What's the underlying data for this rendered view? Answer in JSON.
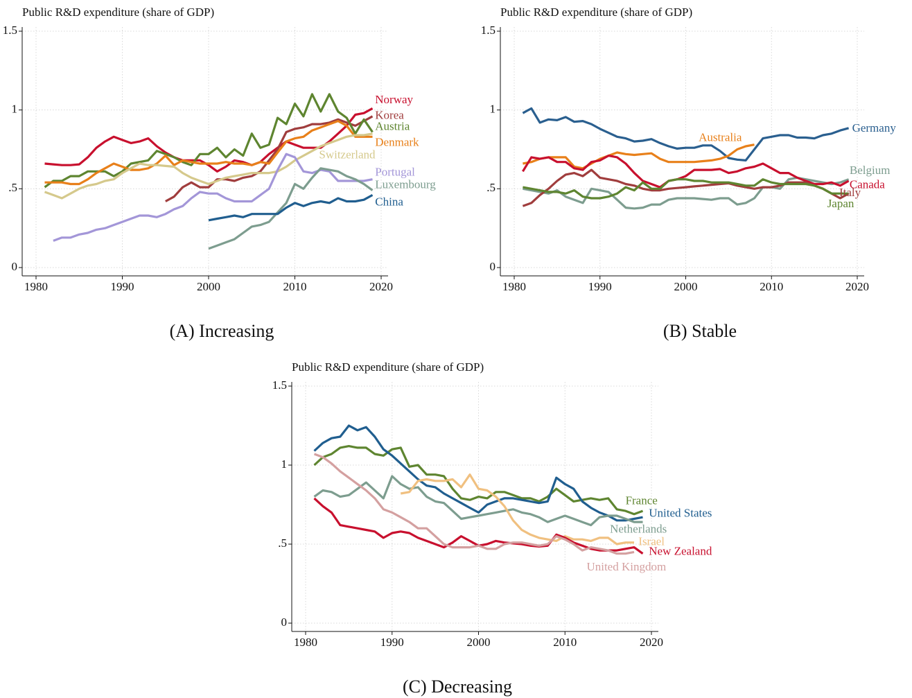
{
  "chart_data": [
    {
      "type": "line",
      "title": "Public R&D expenditure (share of GDP)",
      "caption": "(A) Increasing",
      "x": [
        1981,
        1982,
        1983,
        1984,
        1985,
        1986,
        1987,
        1988,
        1989,
        1990,
        1991,
        1992,
        1993,
        1994,
        1995,
        1996,
        1997,
        1998,
        1999,
        2000,
        2001,
        2002,
        2003,
        2004,
        2005,
        2006,
        2007,
        2008,
        2009,
        2010,
        2011,
        2012,
        2013,
        2014,
        2015,
        2016,
        2017,
        2018,
        2019
      ],
      "xlim": [
        1980,
        2020
      ],
      "xticks": [
        1980,
        1990,
        2000,
        2010,
        2020
      ],
      "ylim": [
        0,
        1.5
      ],
      "yticks": [
        0,
        {
          "value": 0.5,
          "label": ".5"
        },
        1,
        1.5
      ],
      "grid": true,
      "series": [
        {
          "name": "Norway",
          "color": "#c8102e",
          "values": [
            0.66,
            0.655,
            0.65,
            0.65,
            0.655,
            0.7,
            0.76,
            0.8,
            0.83,
            0.81,
            0.79,
            0.8,
            0.82,
            0.77,
            0.73,
            0.7,
            0.68,
            0.68,
            0.68,
            0.65,
            0.61,
            0.64,
            0.68,
            0.67,
            0.65,
            0.67,
            0.72,
            0.76,
            0.8,
            0.78,
            0.76,
            0.76,
            0.76,
            0.8,
            0.85,
            0.9,
            0.97,
            0.98,
            1.01
          ]
        },
        {
          "name": "Korea",
          "color": "#a03d3d",
          "values": [
            null,
            null,
            null,
            null,
            null,
            null,
            null,
            null,
            null,
            null,
            null,
            null,
            null,
            null,
            0.42,
            0.45,
            0.51,
            0.54,
            0.51,
            0.51,
            0.56,
            0.56,
            0.55,
            0.57,
            0.58,
            0.61,
            0.68,
            0.75,
            0.86,
            0.88,
            0.89,
            0.91,
            0.91,
            0.92,
            0.94,
            0.92,
            0.9,
            0.93,
            0.96
          ]
        },
        {
          "name": "Austria",
          "color": "#5e8530",
          "values": [
            0.51,
            0.55,
            0.55,
            0.58,
            0.58,
            0.61,
            0.61,
            0.61,
            0.58,
            0.61,
            0.66,
            0.67,
            0.68,
            0.74,
            0.72,
            0.7,
            0.67,
            0.65,
            0.72,
            0.72,
            0.76,
            0.7,
            0.75,
            0.71,
            0.85,
            0.76,
            0.78,
            0.95,
            0.91,
            1.04,
            0.96,
            1.1,
            0.99,
            1.1,
            0.99,
            0.95,
            0.85,
            0.94,
            0.86
          ]
        },
        {
          "name": "Denmark",
          "color": "#e8801a",
          "values": [
            0.54,
            0.54,
            0.54,
            0.53,
            0.53,
            0.56,
            0.6,
            0.63,
            0.66,
            0.64,
            0.62,
            0.62,
            0.63,
            0.66,
            0.71,
            0.65,
            0.68,
            0.67,
            0.66,
            0.66,
            0.66,
            0.67,
            0.66,
            0.66,
            0.65,
            0.67,
            0.66,
            0.73,
            0.8,
            0.82,
            0.83,
            0.87,
            0.89,
            0.91,
            0.93,
            0.9,
            0.83,
            0.83,
            0.83
          ]
        },
        {
          "name": "Switzerland",
          "color": "#d5c98c",
          "values": [
            0.48,
            0.46,
            0.44,
            0.47,
            0.5,
            0.52,
            0.53,
            0.55,
            0.56,
            0.6,
            0.63,
            0.66,
            0.65,
            0.65,
            0.645,
            0.64,
            0.6,
            0.57,
            0.55,
            0.53,
            0.55,
            0.57,
            0.58,
            0.59,
            0.6,
            0.6,
            0.6,
            0.61,
            0.64,
            0.68,
            0.71,
            0.74,
            0.77,
            0.79,
            0.81,
            0.83,
            0.84,
            0.84,
            0.85
          ]
        },
        {
          "name": "Portugal",
          "color": "#a396d8",
          "values": [
            null,
            0.17,
            0.19,
            0.19,
            0.21,
            0.22,
            0.24,
            0.25,
            0.27,
            0.29,
            0.31,
            0.33,
            0.33,
            0.32,
            0.34,
            0.37,
            0.39,
            0.44,
            0.48,
            0.47,
            0.47,
            0.44,
            0.42,
            0.42,
            0.42,
            0.46,
            0.5,
            0.62,
            0.72,
            0.7,
            0.61,
            0.6,
            0.62,
            0.61,
            0.55,
            0.55,
            0.55,
            0.55,
            0.56
          ]
        },
        {
          "name": "Luxembourg",
          "color": "#7d9d8f",
          "values": [
            null,
            null,
            null,
            null,
            null,
            null,
            null,
            null,
            null,
            null,
            null,
            null,
            null,
            null,
            null,
            null,
            null,
            null,
            null,
            0.12,
            0.14,
            0.16,
            0.18,
            0.22,
            0.26,
            0.27,
            0.29,
            0.35,
            0.41,
            0.53,
            0.5,
            0.57,
            0.63,
            0.62,
            0.61,
            0.58,
            0.56,
            0.53,
            0.49
          ]
        },
        {
          "name": "China",
          "color": "#205e8f",
          "values": [
            null,
            null,
            null,
            null,
            null,
            null,
            null,
            null,
            null,
            null,
            null,
            null,
            null,
            null,
            null,
            null,
            null,
            null,
            null,
            0.3,
            0.31,
            0.32,
            0.33,
            0.32,
            0.34,
            0.34,
            0.34,
            0.34,
            0.38,
            0.41,
            0.39,
            0.41,
            0.42,
            0.41,
            0.44,
            0.42,
            0.42,
            0.43,
            0.46
          ]
        }
      ]
    },
    {
      "type": "line",
      "title": "Public R&D expenditure (share of GDP)",
      "caption": "(B) Stable",
      "x": [
        1981,
        1982,
        1983,
        1984,
        1985,
        1986,
        1987,
        1988,
        1989,
        1990,
        1991,
        1992,
        1993,
        1994,
        1995,
        1996,
        1997,
        1998,
        1999,
        2000,
        2001,
        2002,
        2003,
        2004,
        2005,
        2006,
        2007,
        2008,
        2009,
        2010,
        2011,
        2012,
        2013,
        2014,
        2015,
        2016,
        2017,
        2018,
        2019
      ],
      "xlim": [
        1980,
        2020
      ],
      "xticks": [
        1980,
        1990,
        2000,
        2010,
        2020
      ],
      "ylim": [
        0,
        1.5
      ],
      "yticks": [
        0,
        {
          "value": 0.5,
          "label": ".5"
        },
        1,
        1.5
      ],
      "grid": true,
      "series": [
        {
          "name": "Germany",
          "color": "#2a5f8f",
          "values": [
            0.98,
            1.01,
            0.92,
            0.94,
            0.935,
            0.955,
            0.925,
            0.93,
            0.91,
            0.88,
            0.855,
            0.83,
            0.82,
            0.8,
            0.805,
            0.815,
            0.79,
            0.77,
            0.755,
            0.76,
            0.76,
            0.775,
            0.775,
            0.74,
            0.695,
            0.685,
            0.68,
            0.75,
            0.82,
            0.83,
            0.84,
            0.84,
            0.825,
            0.825,
            0.82,
            0.84,
            0.85,
            0.87,
            0.885
          ]
        },
        {
          "name": "Australia",
          "color": "#e8801a",
          "values": [
            0.66,
            0.67,
            0.69,
            0.7,
            0.7,
            0.7,
            0.64,
            0.63,
            0.66,
            0.69,
            0.71,
            0.73,
            0.72,
            0.715,
            0.72,
            0.725,
            0.69,
            0.67,
            0.67,
            0.67,
            0.67,
            0.675,
            0.68,
            0.69,
            0.71,
            0.75,
            0.77,
            0.78,
            null,
            null,
            null,
            null,
            null,
            null,
            null,
            null,
            null,
            null,
            null
          ]
        },
        {
          "name": "Belgium",
          "color": "#7d9d8f",
          "values": [
            0.5,
            0.49,
            0.48,
            0.47,
            0.49,
            0.45,
            0.43,
            0.41,
            0.5,
            0.49,
            0.48,
            0.43,
            0.38,
            0.375,
            0.38,
            0.4,
            0.4,
            0.43,
            0.44,
            0.44,
            0.44,
            0.435,
            0.43,
            0.44,
            0.44,
            0.4,
            0.41,
            0.44,
            0.51,
            0.51,
            0.5,
            0.56,
            0.57,
            0.56,
            0.55,
            0.54,
            0.53,
            0.54,
            0.56
          ]
        },
        {
          "name": "Canada",
          "color": "#c8102e",
          "values": [
            0.61,
            0.7,
            0.69,
            0.7,
            0.67,
            0.67,
            0.63,
            0.62,
            0.67,
            0.68,
            0.71,
            0.7,
            0.66,
            0.6,
            0.55,
            0.53,
            0.51,
            0.55,
            0.56,
            0.58,
            0.62,
            0.62,
            0.62,
            0.625,
            0.6,
            0.61,
            0.63,
            0.64,
            0.66,
            0.63,
            0.6,
            0.6,
            0.57,
            0.55,
            0.53,
            0.53,
            0.54,
            0.52,
            0.55
          ]
        },
        {
          "name": "Italy",
          "color": "#a03d3d",
          "values": [
            0.39,
            0.41,
            0.46,
            0.5,
            0.55,
            0.59,
            0.6,
            0.58,
            0.62,
            0.57,
            0.56,
            0.55,
            0.53,
            0.52,
            0.5,
            0.49,
            0.49,
            0.5,
            0.505,
            0.51,
            0.515,
            0.52,
            0.525,
            0.53,
            0.535,
            0.52,
            0.51,
            0.5,
            0.51,
            0.51,
            0.52,
            0.54,
            0.54,
            0.54,
            0.52,
            0.5,
            0.47,
            0.44,
            0.47
          ]
        },
        {
          "name": "Japan",
          "color": "#5e8530",
          "values": [
            0.51,
            0.5,
            0.49,
            0.48,
            0.48,
            0.47,
            0.49,
            0.45,
            0.44,
            0.44,
            0.45,
            0.47,
            0.51,
            0.49,
            0.54,
            0.5,
            0.5,
            0.55,
            0.56,
            0.56,
            0.55,
            0.55,
            0.54,
            0.54,
            0.54,
            0.53,
            0.52,
            0.52,
            0.56,
            0.54,
            0.53,
            0.53,
            0.53,
            0.53,
            0.52,
            0.5,
            0.47,
            0.47,
            0.47
          ]
        }
      ]
    },
    {
      "type": "line",
      "title": "Public R&D expenditure (share of GDP)",
      "caption": "(C) Decreasing",
      "x": [
        1981,
        1982,
        1983,
        1984,
        1985,
        1986,
        1987,
        1988,
        1989,
        1990,
        1991,
        1992,
        1993,
        1994,
        1995,
        1996,
        1997,
        1998,
        1999,
        2000,
        2001,
        2002,
        2003,
        2004,
        2005,
        2006,
        2007,
        2008,
        2009,
        2010,
        2011,
        2012,
        2013,
        2014,
        2015,
        2016,
        2017,
        2018,
        2019
      ],
      "xlim": [
        1980,
        2020
      ],
      "xticks": [
        1980,
        1990,
        2000,
        2010,
        2020
      ],
      "ylim": [
        0,
        1.5
      ],
      "yticks": [
        0,
        {
          "value": 0.5,
          "label": ".5"
        },
        1,
        1.5
      ],
      "grid": true,
      "series": [
        {
          "name": "France",
          "color": "#5e8530",
          "values": [
            1.0,
            1.05,
            1.07,
            1.11,
            1.12,
            1.11,
            1.11,
            1.07,
            1.06,
            1.1,
            1.11,
            0.99,
            1.0,
            0.94,
            0.94,
            0.93,
            0.85,
            0.79,
            0.78,
            0.8,
            0.79,
            0.83,
            0.83,
            0.81,
            0.79,
            0.79,
            0.77,
            0.8,
            0.85,
            0.81,
            0.77,
            0.78,
            0.79,
            0.78,
            0.79,
            0.72,
            0.71,
            0.69,
            0.71
          ]
        },
        {
          "name": "United States",
          "color": "#205e8f",
          "values": [
            1.09,
            1.14,
            1.17,
            1.18,
            1.25,
            1.22,
            1.24,
            1.18,
            1.1,
            1.06,
            1.01,
            0.96,
            0.91,
            0.87,
            0.86,
            0.82,
            0.79,
            0.76,
            0.73,
            0.7,
            0.75,
            0.77,
            0.79,
            0.79,
            0.78,
            0.77,
            0.76,
            0.77,
            0.92,
            0.88,
            0.85,
            0.77,
            0.73,
            0.7,
            0.68,
            0.65,
            0.65,
            0.66,
            0.67
          ]
        },
        {
          "name": "Netherlands",
          "color": "#7d9d8f",
          "values": [
            0.8,
            0.84,
            0.83,
            0.8,
            0.81,
            0.85,
            0.89,
            0.84,
            0.79,
            0.93,
            0.88,
            0.85,
            0.86,
            0.8,
            0.77,
            0.76,
            0.71,
            0.66,
            0.67,
            0.68,
            0.69,
            0.7,
            0.71,
            0.72,
            0.7,
            0.69,
            0.67,
            0.64,
            0.66,
            0.68,
            0.66,
            0.64,
            0.62,
            0.67,
            0.68,
            0.68,
            0.66,
            0.64,
            0.64
          ]
        },
        {
          "name": "Israel",
          "color": "#f0c080",
          "values": [
            null,
            null,
            null,
            null,
            null,
            null,
            null,
            null,
            null,
            null,
            0.82,
            0.83,
            0.9,
            0.91,
            0.9,
            0.9,
            0.91,
            0.86,
            0.94,
            0.85,
            0.84,
            0.8,
            0.74,
            0.65,
            0.59,
            0.56,
            0.54,
            0.53,
            0.52,
            0.55,
            0.53,
            0.53,
            0.52,
            0.54,
            0.54,
            0.5,
            0.51,
            0.51,
            null
          ]
        },
        {
          "name": "New Zealand",
          "color": "#c8102e",
          "values": [
            0.79,
            0.74,
            0.7,
            0.62,
            0.61,
            0.6,
            0.59,
            0.58,
            0.54,
            0.57,
            0.58,
            0.57,
            0.54,
            0.52,
            0.5,
            0.48,
            0.51,
            0.55,
            0.52,
            0.49,
            0.5,
            0.52,
            0.51,
            0.505,
            0.5,
            0.49,
            0.485,
            0.49,
            0.56,
            0.54,
            0.51,
            0.49,
            0.47,
            0.46,
            0.46,
            0.46,
            0.47,
            0.48,
            0.44
          ]
        },
        {
          "name": "United Kingdom",
          "color": "#d4a0a0",
          "values": [
            1.07,
            1.05,
            1.01,
            0.96,
            0.92,
            0.88,
            0.84,
            0.79,
            0.72,
            0.7,
            0.67,
            0.64,
            0.6,
            0.6,
            0.55,
            0.5,
            0.48,
            0.48,
            0.48,
            0.49,
            0.47,
            0.47,
            0.5,
            0.51,
            0.51,
            0.5,
            0.49,
            0.5,
            0.55,
            0.53,
            0.5,
            0.46,
            0.48,
            0.47,
            0.46,
            0.44,
            0.44,
            0.45,
            null
          ]
        }
      ]
    }
  ]
}
